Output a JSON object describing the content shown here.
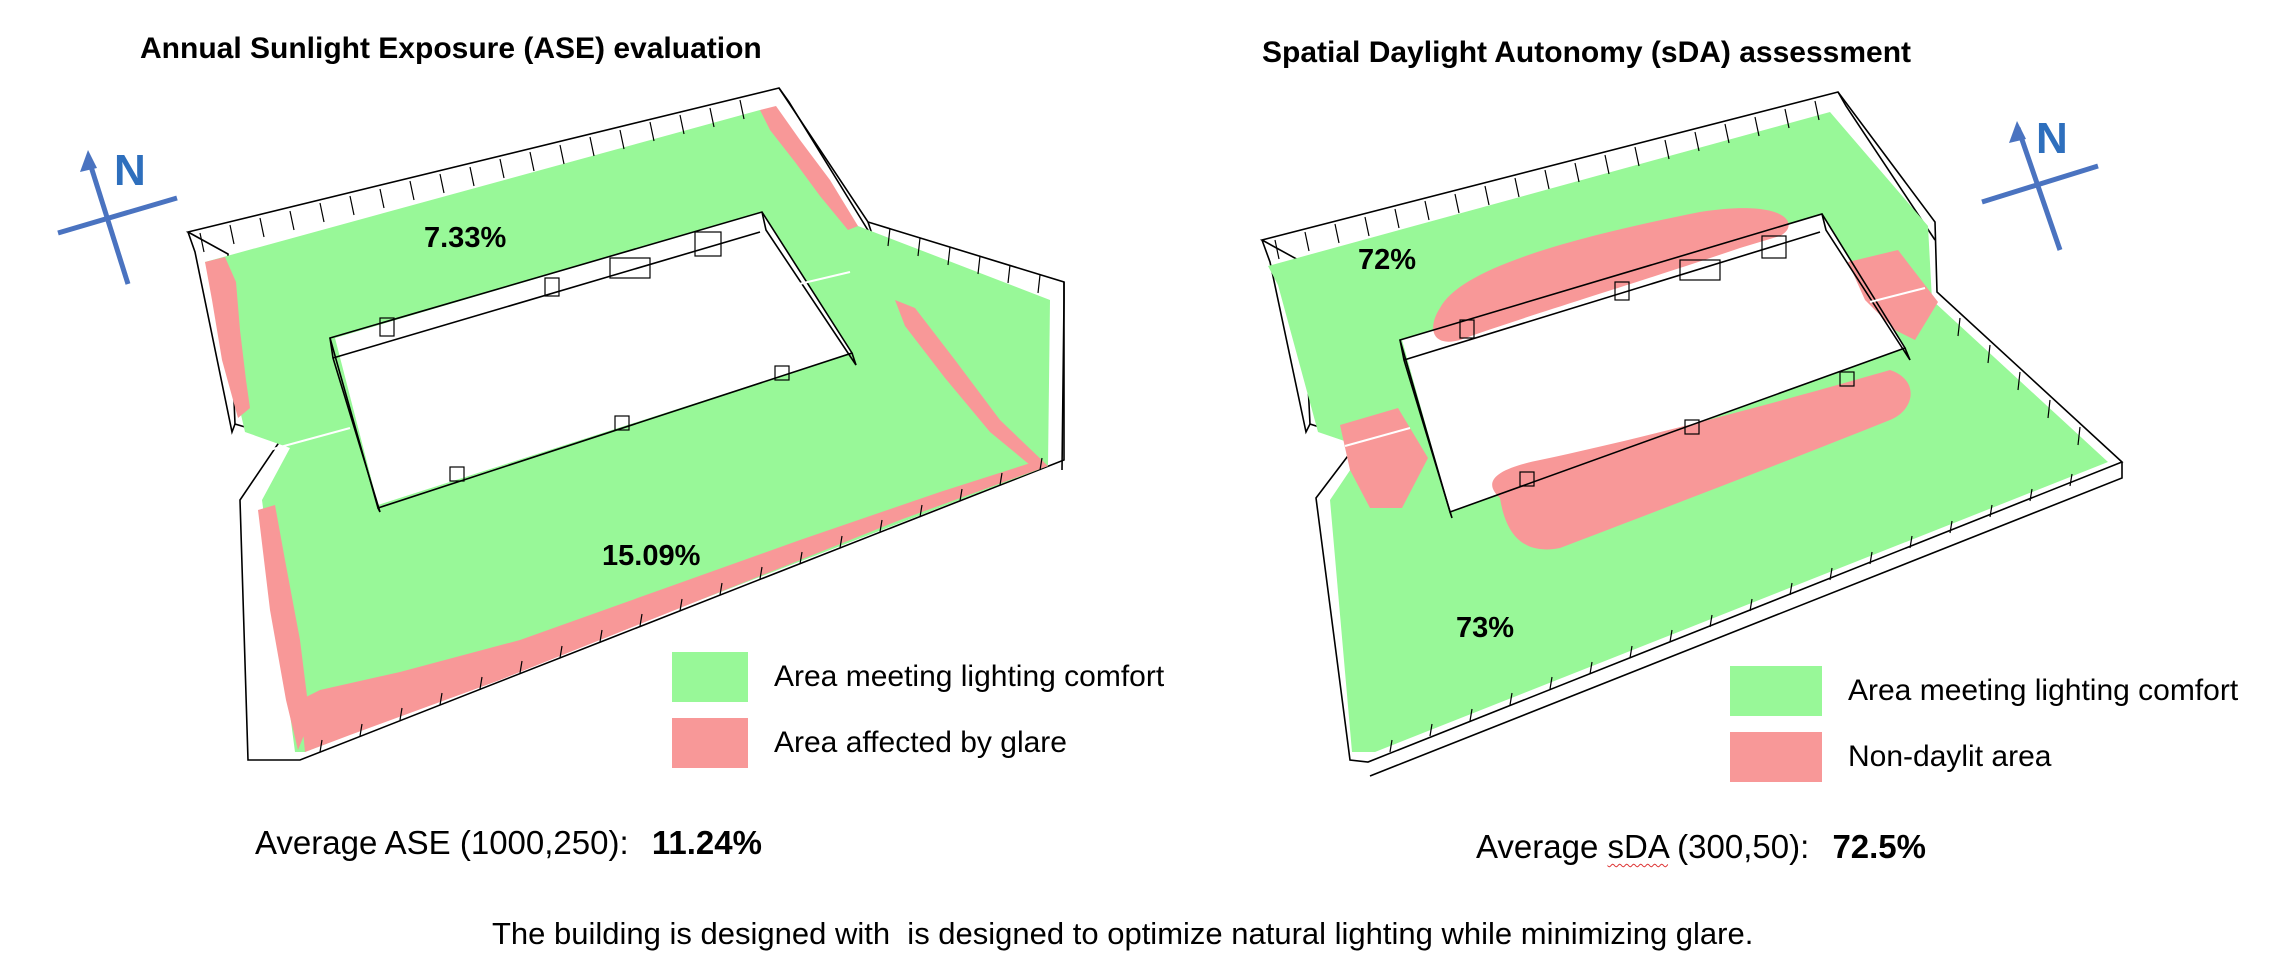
{
  "left_panel": {
    "title": "Annual Sunlight Exposure (ASE) evaluation",
    "north_label": "N",
    "zone_north_value": "7.33%",
    "zone_south_value": "15.09%",
    "legend": [
      {
        "label": "Area meeting lighting comfort",
        "color": "#98f898"
      },
      {
        "label": "Area affected by glare",
        "color": "#f89898"
      }
    ],
    "average_label": "Average ASE (1000,250):",
    "average_value": "11.24%"
  },
  "right_panel": {
    "title": "Spatial Daylight Autonomy (sDA) assessment",
    "north_label": "N",
    "zone_north_value": "72%",
    "zone_south_value": "73%",
    "legend": [
      {
        "label": "Area meeting lighting comfort",
        "color": "#98f898"
      },
      {
        "label": "Non-daylit area",
        "color": "#f89898"
      }
    ],
    "average_prefix": "Average ",
    "average_underlined": "sDA",
    "average_suffix": " (300,50):",
    "average_value": "72.5%"
  },
  "caption": "The building is designed with  is designed to optimize natural lighting while minimizing glare.",
  "colors": {
    "comfort": "#98f898",
    "glare": "#f89898",
    "north_arrow": "#4a73c0",
    "outline": "#000000"
  }
}
